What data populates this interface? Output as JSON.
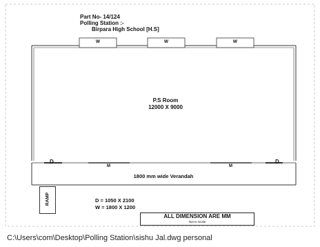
{
  "header": {
    "part_no": "Part No- 14/124",
    "polling_station_label": "Polling Station :-",
    "school_name": "Birpara High  School [H.S]"
  },
  "windows": [
    {
      "label": "W"
    },
    {
      "label": "W"
    },
    {
      "label": "W"
    }
  ],
  "room": {
    "name": "P.S Room",
    "size": "12000 X 9000"
  },
  "verandah": {
    "door_left": "D",
    "door_right": "D",
    "mark_left": "M",
    "mark_right": "M",
    "label": "1800 mm wide Verandah"
  },
  "ramp": {
    "label": "RAMP"
  },
  "legend": {
    "door": "D = 1050 X 2100",
    "window": "W = 1800 X 1200"
  },
  "dimension_note": {
    "title": "ALL DIMENSION ARE MM",
    "subtitle": "Not to Scale"
  },
  "file_path": "C:\\Users\\com\\Desktop\\Polling Station\\sishu Jal.dwg personal"
}
